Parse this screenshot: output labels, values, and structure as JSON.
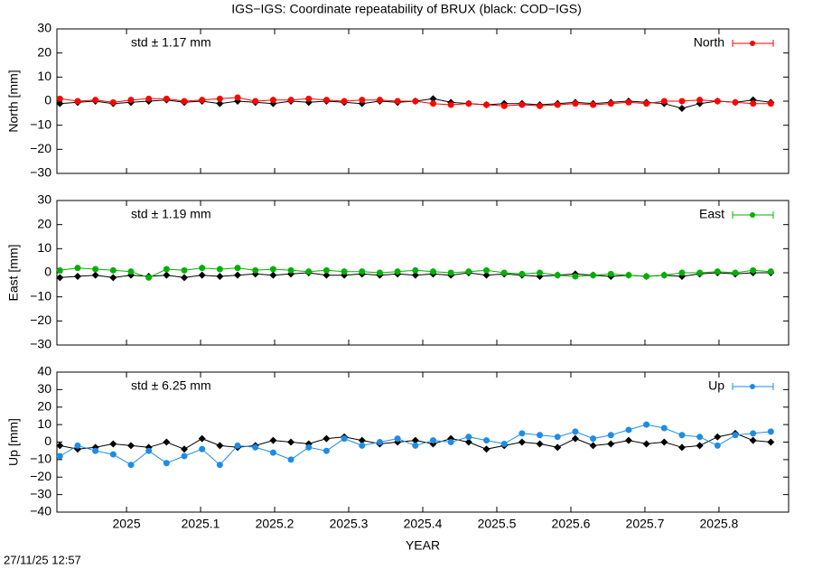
{
  "title": "IGS−IGS: Coordinate repeatability of BRUX (black: COD−IGS)",
  "timestamp": "27/11/25 12:57",
  "chart_data": [
    {
      "type": "line",
      "ylabel": "North [mm]",
      "annotation": "std ± 1.17 mm",
      "annotation_color": "#ff0000",
      "xlim": [
        2024.906,
        2025.894
      ],
      "xticks": [
        2025,
        2025.1,
        2025.2,
        2025.3,
        2025.4,
        2025.5,
        2025.6,
        2025.7,
        2025.8
      ],
      "ylim": [
        -30,
        30
      ],
      "yticks": [
        {
          "value": -30,
          "label": "−30"
        },
        {
          "value": -20,
          "label": "−20"
        },
        {
          "value": -10,
          "label": "−10"
        },
        0,
        10,
        20,
        30
      ],
      "x": [
        2024.91,
        2024.934,
        2024.958,
        2024.982,
        2025.006,
        2025.03,
        2025.054,
        2025.078,
        2025.102,
        2025.126,
        2025.15,
        2025.174,
        2025.198,
        2025.222,
        2025.246,
        2025.27,
        2025.294,
        2025.318,
        2025.342,
        2025.366,
        2025.39,
        2025.414,
        2025.438,
        2025.462,
        2025.486,
        2025.51,
        2025.534,
        2025.558,
        2025.582,
        2025.606,
        2025.63,
        2025.654,
        2025.678,
        2025.702,
        2025.726,
        2025.75,
        2025.774,
        2025.798,
        2025.822,
        2025.846,
        2025.87
      ],
      "series": [
        {
          "color": "#000000",
          "marker": "diamond",
          "values": [
            -1,
            -0.5,
            0,
            -1,
            -0.5,
            0,
            0.5,
            -0.5,
            0,
            -1,
            0,
            -0.5,
            -1,
            0,
            -0.5,
            0,
            -0.5,
            -1,
            0,
            -0.5,
            0,
            1,
            -0.5,
            -1,
            -1.5,
            -1,
            -1,
            -1.5,
            -1,
            -0.5,
            -1,
            -0.5,
            0,
            -0.5,
            -1,
            -3,
            -1,
            0,
            -0.5,
            0.5,
            -0.5
          ]
        },
        {
          "name": "North",
          "color": "#ff0000",
          "marker": "circle",
          "values": [
            1,
            0,
            0.5,
            -0.5,
            0.5,
            1,
            1,
            0,
            0.5,
            1,
            1.5,
            0,
            0.5,
            0.5,
            1,
            0.5,
            0,
            0.5,
            0.5,
            0,
            0,
            -1,
            -1.5,
            -1,
            -1.5,
            -2,
            -1.5,
            -2,
            -1.5,
            -1,
            -1.5,
            -1,
            -0.5,
            -1,
            0,
            0,
            0.5,
            0,
            -0.5,
            -1,
            -1
          ]
        }
      ]
    },
    {
      "type": "line",
      "ylabel": "East [mm]",
      "annotation": "std ± 1.19 mm",
      "annotation_color": "#00b000",
      "xlim": [
        2024.906,
        2025.894
      ],
      "xticks": [
        2025,
        2025.1,
        2025.2,
        2025.3,
        2025.4,
        2025.5,
        2025.6,
        2025.7,
        2025.8
      ],
      "ylim": [
        -30,
        30
      ],
      "yticks": [
        {
          "value": -30,
          "label": "−30"
        },
        {
          "value": -20,
          "label": "−20"
        },
        {
          "value": -10,
          "label": "−10"
        },
        0,
        10,
        20,
        30
      ],
      "x": [
        2024.91,
        2024.934,
        2024.958,
        2024.982,
        2025.006,
        2025.03,
        2025.054,
        2025.078,
        2025.102,
        2025.126,
        2025.15,
        2025.174,
        2025.198,
        2025.222,
        2025.246,
        2025.27,
        2025.294,
        2025.318,
        2025.342,
        2025.366,
        2025.39,
        2025.414,
        2025.438,
        2025.462,
        2025.486,
        2025.51,
        2025.534,
        2025.558,
        2025.582,
        2025.606,
        2025.63,
        2025.654,
        2025.678,
        2025.702,
        2025.726,
        2025.75,
        2025.774,
        2025.798,
        2025.822,
        2025.846,
        2025.87
      ],
      "series": [
        {
          "color": "#000000",
          "marker": "diamond",
          "values": [
            -2,
            -1.5,
            -1,
            -2,
            -1,
            -1.5,
            -1,
            -2,
            -1,
            -1.5,
            -1,
            -0.5,
            -1,
            -0.5,
            0,
            -1,
            -1,
            -0.5,
            -1,
            -0.5,
            -1,
            -0.5,
            -1,
            0,
            -1,
            -0.5,
            -1,
            -1.5,
            -1,
            -0.5,
            -1,
            -1.5,
            -1,
            -1.5,
            -1,
            -1.5,
            -0.5,
            0,
            -0.5,
            0,
            0
          ]
        },
        {
          "name": "East",
          "color": "#00b000",
          "marker": "circle",
          "values": [
            1,
            2,
            1.5,
            1,
            0.5,
            -2,
            1.5,
            1,
            2,
            1.5,
            2,
            1,
            1.5,
            1,
            0.5,
            1,
            0.5,
            0.5,
            0,
            0.5,
            1,
            0.5,
            0,
            0.5,
            1,
            0,
            -0.5,
            0,
            -1,
            -1.5,
            -1,
            -0.5,
            -1,
            -1.5,
            -1,
            0,
            0,
            0.5,
            0,
            1,
            0.5
          ]
        }
      ]
    },
    {
      "type": "line",
      "ylabel": "Up [mm]",
      "xlabel": "YEAR",
      "annotation": "std ± 6.25 mm",
      "annotation_color": "#1e8ce6",
      "xlim": [
        2024.906,
        2025.894
      ],
      "xticks": [
        2025,
        2025.1,
        2025.2,
        2025.3,
        2025.4,
        2025.5,
        2025.6,
        2025.7,
        2025.8
      ],
      "ylim": [
        -40,
        40
      ],
      "yticks": [
        {
          "value": -40,
          "label": "−40"
        },
        {
          "value": -30,
          "label": "−30"
        },
        {
          "value": -20,
          "label": "−20"
        },
        {
          "value": -10,
          "label": "−10"
        },
        0,
        10,
        20,
        30,
        40
      ],
      "x": [
        2024.91,
        2024.934,
        2024.958,
        2024.982,
        2025.006,
        2025.03,
        2025.054,
        2025.078,
        2025.102,
        2025.126,
        2025.15,
        2025.174,
        2025.198,
        2025.222,
        2025.246,
        2025.27,
        2025.294,
        2025.318,
        2025.342,
        2025.366,
        2025.39,
        2025.414,
        2025.438,
        2025.462,
        2025.486,
        2025.51,
        2025.534,
        2025.558,
        2025.582,
        2025.606,
        2025.63,
        2025.654,
        2025.678,
        2025.702,
        2025.726,
        2025.75,
        2025.774,
        2025.798,
        2025.822,
        2025.846,
        2025.87
      ],
      "series": [
        {
          "color": "#000000",
          "marker": "diamond",
          "values": [
            -2,
            -4,
            -3,
            -1,
            -2,
            -3,
            0,
            -4,
            2,
            -2,
            -3,
            -2,
            1,
            0,
            -1,
            2,
            3,
            1,
            -1,
            0,
            1,
            -1,
            2,
            0,
            -4,
            -2,
            0,
            -1,
            -3,
            2,
            -2,
            -1,
            1,
            -1,
            0,
            -3,
            -2,
            3,
            5,
            1,
            0
          ]
        },
        {
          "name": "Up",
          "color": "#1e8ce6",
          "marker": "circle",
          "values": [
            -8,
            -2,
            -5,
            -7,
            -13,
            -5,
            -12,
            -8,
            -4,
            -13,
            -2,
            -3,
            -6,
            -10,
            -3,
            -5,
            2,
            -2,
            0,
            2,
            -2,
            1,
            0,
            3,
            1,
            -1,
            5,
            4,
            3,
            6,
            2,
            4,
            7,
            10,
            8,
            4,
            3,
            -2,
            4,
            5,
            6
          ]
        }
      ]
    }
  ]
}
